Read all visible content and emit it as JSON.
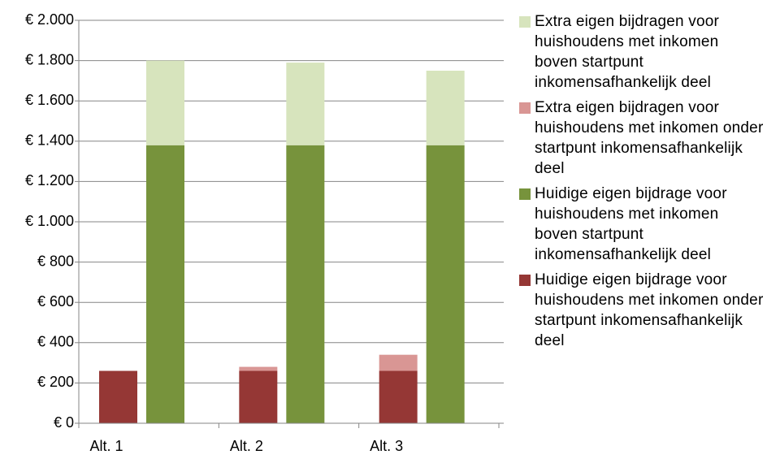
{
  "chart_data": {
    "type": "bar",
    "categories": [
      "Alt. 1",
      "Alt. 2",
      "Alt. 3"
    ],
    "series": [
      {
        "name": "Extra eigen bijdragen voor huishoudens met inkomen boven startpunt inkomensafhankelijk deel",
        "color": "#d7e4bd",
        "values": [
          420,
          410,
          370
        ]
      },
      {
        "name": "Extra eigen bijdragen voor huishoudens met inkomen onder startpunt inkomensafhankelijk deel",
        "color": "#d99694",
        "values": [
          0,
          20,
          80
        ]
      },
      {
        "name": "Huidige eigen bijdrage voor huishoudens met inkomen boven startpunt inkomensafhankelijk deel",
        "color": "#77933c",
        "values": [
          1380,
          1380,
          1380
        ]
      },
      {
        "name": "Huidige eigen bijdrage voor huishoudens met inkomen onder startpunt inkomensafhankelijk deel",
        "color": "#953735",
        "values": [
          260,
          260,
          260
        ]
      }
    ],
    "ylim": [
      0,
      2000
    ],
    "yticks": [
      {
        "value": 0,
        "label": "€ 0"
      },
      {
        "value": 200,
        "label": "€ 200"
      },
      {
        "value": 400,
        "label": "€ 400"
      },
      {
        "value": 600,
        "label": "€ 600"
      },
      {
        "value": 800,
        "label": "€ 800"
      },
      {
        "value": 1000,
        "label": "€ 1.000"
      },
      {
        "value": 1200,
        "label": "€ 1.200"
      },
      {
        "value": 1400,
        "label": "€ 1.400"
      },
      {
        "value": 1600,
        "label": "€ 1.600"
      },
      {
        "value": 1800,
        "label": "€ 1.800"
      },
      {
        "value": 2000,
        "label": "€ 2.000"
      }
    ],
    "grid": true,
    "legend": "right"
  }
}
